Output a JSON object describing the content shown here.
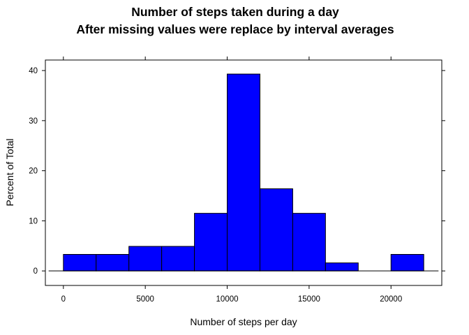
{
  "chart_data": {
    "type": "bar",
    "subtype": "histogram",
    "title": "Number of steps taken during a day",
    "subtitle": "After missing values were replace by interval averages",
    "xlabel": "Number of steps per day",
    "ylabel": "Percent of Total",
    "bins": [
      {
        "start": 0,
        "end": 2000,
        "value": 3.3
      },
      {
        "start": 2000,
        "end": 4000,
        "value": 3.3
      },
      {
        "start": 4000,
        "end": 6000,
        "value": 4.9
      },
      {
        "start": 6000,
        "end": 8000,
        "value": 4.9
      },
      {
        "start": 8000,
        "end": 10000,
        "value": 11.5
      },
      {
        "start": 10000,
        "end": 12000,
        "value": 39.3
      },
      {
        "start": 12000,
        "end": 14000,
        "value": 16.4
      },
      {
        "start": 14000,
        "end": 16000,
        "value": 11.5
      },
      {
        "start": 16000,
        "end": 18000,
        "value": 1.6
      },
      {
        "start": 18000,
        "end": 20000,
        "value": 0
      },
      {
        "start": 20000,
        "end": 22000,
        "value": 3.3
      }
    ],
    "xticks": [
      0,
      5000,
      10000,
      15000,
      20000
    ],
    "yticks": [
      0,
      10,
      20,
      30,
      40
    ],
    "xlim": [
      -1100,
      23100
    ],
    "ylim": [
      -2.9,
      42.1
    ],
    "bar_color": "#0000ff",
    "grid": false,
    "legend": "none"
  }
}
